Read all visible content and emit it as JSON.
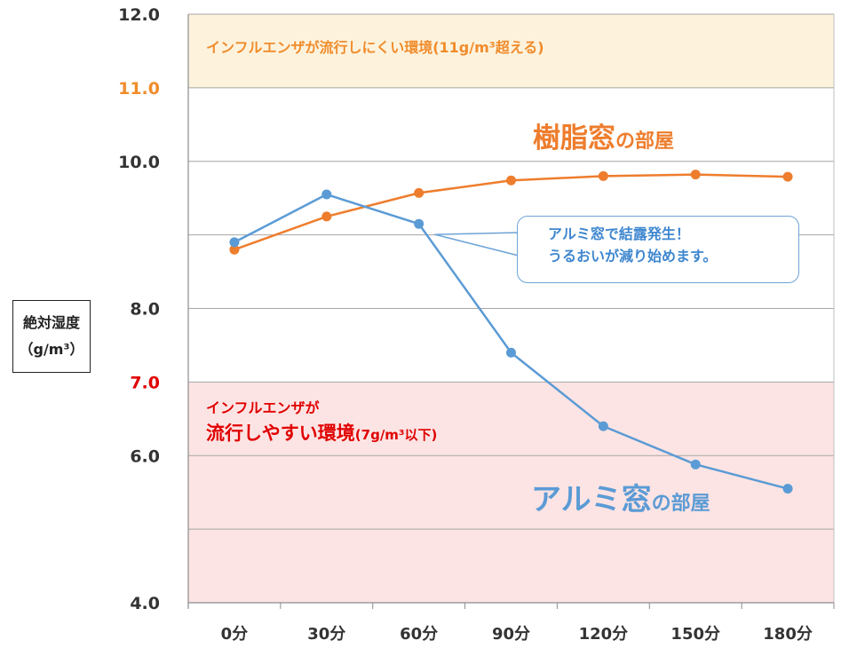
{
  "chart_data": {
    "type": "line",
    "title": "",
    "xlabel": "",
    "ylabel_line1": "絶対湿度",
    "ylabel_line2": "（g/m³）",
    "ylim": [
      4.0,
      12.0
    ],
    "categories": [
      "0分",
      "30分",
      "60分",
      "90分",
      "120分",
      "150分",
      "180分"
    ],
    "y_ticks": [
      {
        "value": 12.0,
        "label": "12.0",
        "color": "#333333"
      },
      {
        "value": 11.0,
        "label": "11.0",
        "color": "#f08c2c"
      },
      {
        "value": 10.0,
        "label": "10.0",
        "color": "#333333"
      },
      {
        "value": 8.0,
        "label": "8.0",
        "color": "#333333"
      },
      {
        "value": 7.0,
        "label": "7.0",
        "color": "#e00000"
      },
      {
        "value": 6.0,
        "label": "6.0",
        "color": "#333333"
      },
      {
        "value": 4.0,
        "label": "4.0",
        "color": "#333333"
      }
    ],
    "gridlines": [
      11.0,
      10.0,
      9.0,
      8.0,
      7.0,
      6.0,
      5.0
    ],
    "series": [
      {
        "name": "樹脂窓の部屋",
        "color": "#ee7d2d",
        "values": [
          8.8,
          9.25,
          9.57,
          9.74,
          9.8,
          9.82,
          9.79
        ]
      },
      {
        "name": "アルミ窓の部屋",
        "color": "#5b9bd5",
        "values": [
          8.9,
          9.55,
          9.15,
          7.4,
          6.4,
          5.88,
          5.55
        ]
      }
    ],
    "bands": [
      {
        "from": 11.0,
        "to": 12.0,
        "color": "#fdf3dd"
      },
      {
        "from": 4.0,
        "to": 7.0,
        "color": "#fde4e4"
      }
    ]
  },
  "annotations": {
    "top_zone": "インフルエンザが流行しにくい環境(11g/m³超える)",
    "bottom_zone_line1": "インフルエンザが",
    "bottom_zone_line2_main": "流行しやすい環境",
    "bottom_zone_line2_sub": "(7g/m³以下)",
    "callout_line1": "アルミ窓で結露発生！",
    "callout_line2": "うるおいが減り始めます。",
    "resin_label_main": "樹脂窓",
    "resin_label_sub": "の部屋",
    "alu_label_main": "アルミ窓",
    "alu_label_sub": "の部屋"
  }
}
